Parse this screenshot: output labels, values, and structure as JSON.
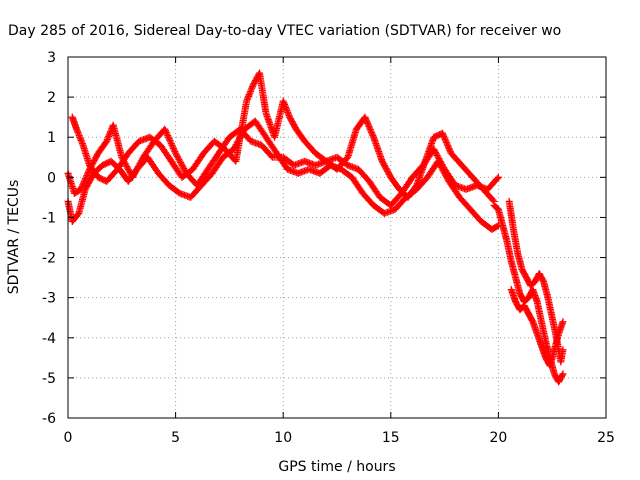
{
  "chart_data": {
    "type": "scatter",
    "title": "Day 285 of 2016, Sidereal Day-to-day VTEC variation (SDTVAR) for receiver wo",
    "xlabel": "GPS time / hours",
    "ylabel": "SDTVAR / TECUs",
    "xlim": [
      0,
      25
    ],
    "ylim": [
      -6,
      3
    ],
    "xticks": [
      0,
      5,
      10,
      15,
      20,
      25
    ],
    "yticks": [
      -6,
      -5,
      -4,
      -3,
      -2,
      -1,
      0,
      1,
      2,
      3
    ],
    "grid": true,
    "marker": "+",
    "series": [
      {
        "name": "SDTVAR",
        "color": "#ff0000",
        "tracks": [
          {
            "x": [
              0.0,
              0.3,
              0.6,
              1.0,
              1.4,
              1.8,
              2.1,
              2.5,
              3.0,
              3.5,
              4.0,
              4.5,
              5.0,
              5.5,
              6.0,
              6.5,
              7.0,
              7.5,
              8.0,
              8.5,
              9.0,
              9.5,
              10.0,
              10.5,
              11.0,
              11.5,
              12.0,
              12.5,
              13.0,
              13.5,
              14.0,
              14.5,
              15.0,
              15.5,
              16.0,
              16.5,
              17.0,
              17.5,
              18.0,
              18.5,
              19.0,
              19.5,
              20.0
            ],
            "y": [
              0.1,
              -0.4,
              -0.3,
              0.2,
              0.6,
              0.9,
              1.3,
              0.5,
              0.0,
              0.5,
              0.9,
              1.2,
              0.6,
              0.1,
              -0.2,
              0.2,
              0.6,
              1.0,
              1.2,
              0.9,
              0.8,
              0.5,
              0.5,
              0.3,
              0.4,
              0.3,
              0.4,
              0.5,
              0.3,
              0.2,
              -0.1,
              -0.5,
              -0.7,
              -0.4,
              0.0,
              0.3,
              0.7,
              0.2,
              -0.2,
              -0.3,
              -0.2,
              -0.3,
              0.0
            ]
          },
          {
            "x": [
              0.0,
              0.2,
              0.5,
              0.8,
              1.2,
              1.6,
              2.0,
              2.4,
              2.8,
              3.2,
              3.7,
              4.2,
              4.7,
              5.2,
              5.7,
              6.2,
              6.7,
              7.2,
              7.7,
              8.2,
              8.7,
              9.2,
              9.7,
              10.2,
              10.7,
              11.2,
              11.7,
              12.2,
              12.7,
              13.2,
              13.7,
              14.2,
              14.7,
              15.2,
              15.7,
              16.2,
              16.7,
              17.2,
              17.7,
              18.2,
              18.7,
              19.2,
              19.7,
              20.0
            ],
            "y": [
              -0.6,
              -1.1,
              -0.9,
              -0.3,
              0.1,
              0.3,
              0.4,
              0.2,
              -0.1,
              0.2,
              0.5,
              0.1,
              -0.2,
              -0.4,
              -0.5,
              -0.2,
              0.1,
              0.5,
              0.7,
              1.2,
              1.4,
              1.0,
              0.6,
              0.2,
              0.1,
              0.2,
              0.1,
              0.3,
              0.2,
              0.0,
              -0.4,
              -0.7,
              -0.9,
              -0.8,
              -0.5,
              -0.3,
              0.0,
              0.4,
              -0.1,
              -0.5,
              -0.8,
              -1.1,
              -1.3,
              -1.2
            ]
          },
          {
            "x": [
              0.2,
              0.4,
              0.7,
              1.0,
              1.4,
              1.8,
              2.3,
              2.8,
              3.3,
              3.8,
              4.3,
              4.8,
              5.3,
              5.8,
              6.3,
              6.8,
              7.3,
              7.8,
              8.3,
              8.6,
              8.9,
              9.2,
              9.6,
              10.0,
              10.3,
              10.6,
              11.0,
              11.5,
              12.0,
              12.5,
              13.0,
              13.4,
              13.8,
              14.2,
              14.6,
              15.0,
              15.4,
              15.8,
              16.2,
              16.6,
              17.0,
              17.4,
              17.8,
              18.3,
              18.8,
              19.3,
              19.8
            ],
            "y": [
              1.5,
              1.2,
              0.8,
              0.3,
              0.0,
              -0.1,
              0.2,
              0.6,
              0.9,
              1.0,
              0.8,
              0.4,
              0.0,
              0.2,
              0.6,
              0.9,
              0.7,
              0.4,
              1.9,
              2.3,
              2.6,
              1.6,
              1.0,
              1.9,
              1.5,
              1.2,
              0.9,
              0.6,
              0.4,
              0.2,
              0.5,
              1.2,
              1.5,
              1.0,
              0.4,
              0.0,
              -0.3,
              -0.5,
              -0.2,
              0.4,
              1.0,
              1.1,
              0.6,
              0.3,
              0.0,
              -0.3,
              -0.6
            ]
          },
          {
            "x": [
              19.8,
              20.0,
              20.2,
              20.4,
              20.6,
              20.8,
              21.0,
              21.2,
              21.4,
              21.6,
              21.8,
              22.0,
              22.2,
              22.4,
              22.6,
              22.8,
              23.0
            ],
            "y": [
              -0.7,
              -0.8,
              -1.2,
              -1.6,
              -2.1,
              -2.5,
              -2.9,
              -3.1,
              -3.0,
              -2.8,
              -3.1,
              -3.6,
              -4.1,
              -4.5,
              -4.9,
              -5.1,
              -4.9
            ]
          },
          {
            "x": [
              20.5,
              20.7,
              20.9,
              21.1,
              21.3,
              21.5,
              21.7,
              21.9,
              22.1,
              22.3,
              22.5,
              22.7,
              22.9,
              23.0
            ],
            "y": [
              -0.6,
              -1.3,
              -1.9,
              -2.3,
              -2.5,
              -2.7,
              -2.6,
              -2.4,
              -2.6,
              -3.0,
              -3.5,
              -4.0,
              -4.6,
              -4.3
            ]
          },
          {
            "x": [
              20.6,
              20.8,
              21.0,
              21.2,
              21.4,
              21.6,
              21.8,
              22.0,
              22.2,
              22.4,
              22.6,
              22.8,
              23.0
            ],
            "y": [
              -2.8,
              -3.1,
              -3.3,
              -3.2,
              -3.4,
              -3.6,
              -3.9,
              -4.2,
              -4.5,
              -4.7,
              -4.3,
              -3.9,
              -3.6
            ]
          }
        ]
      }
    ]
  }
}
